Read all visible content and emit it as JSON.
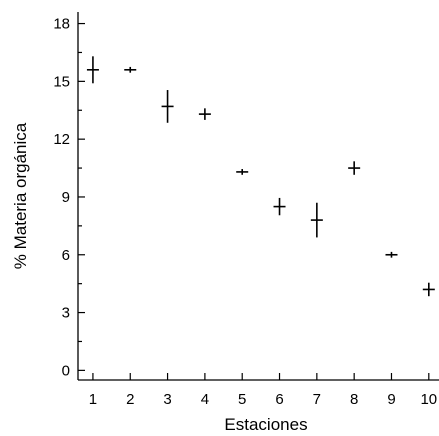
{
  "chart_data": {
    "type": "scatter",
    "title": "",
    "xlabel": "Estaciones",
    "ylabel": "% Materia orgánica",
    "xlim": [
      0.6,
      10.3
    ],
    "ylim": [
      -0.5,
      18.6
    ],
    "x_ticks": [
      1,
      2,
      3,
      4,
      5,
      6,
      7,
      8,
      9,
      10
    ],
    "y_ticks": [
      0,
      3,
      6,
      9,
      12,
      15,
      18
    ],
    "y_minor_ticks": [
      1.5,
      4.5,
      7.5,
      10.5,
      13.5,
      16.5
    ],
    "grid": false,
    "marker": "cross with vertical error bar",
    "series": [
      {
        "points": [
          {
            "x": 1,
            "y": 15.6,
            "err": 0.7
          },
          {
            "x": 2,
            "y": 15.6,
            "err": 0.15
          },
          {
            "x": 3,
            "y": 13.7,
            "err": 0.85
          },
          {
            "x": 4,
            "y": 13.3,
            "err": 0.3
          },
          {
            "x": 5,
            "y": 10.3,
            "err": 0.15
          },
          {
            "x": 6,
            "y": 8.5,
            "err": 0.45
          },
          {
            "x": 7,
            "y": 7.8,
            "err": 0.9
          },
          {
            "x": 8,
            "y": 10.5,
            "err": 0.35
          },
          {
            "x": 9,
            "y": 6.0,
            "err": 0.15
          },
          {
            "x": 10,
            "y": 4.2,
            "err": 0.35
          }
        ]
      }
    ]
  }
}
